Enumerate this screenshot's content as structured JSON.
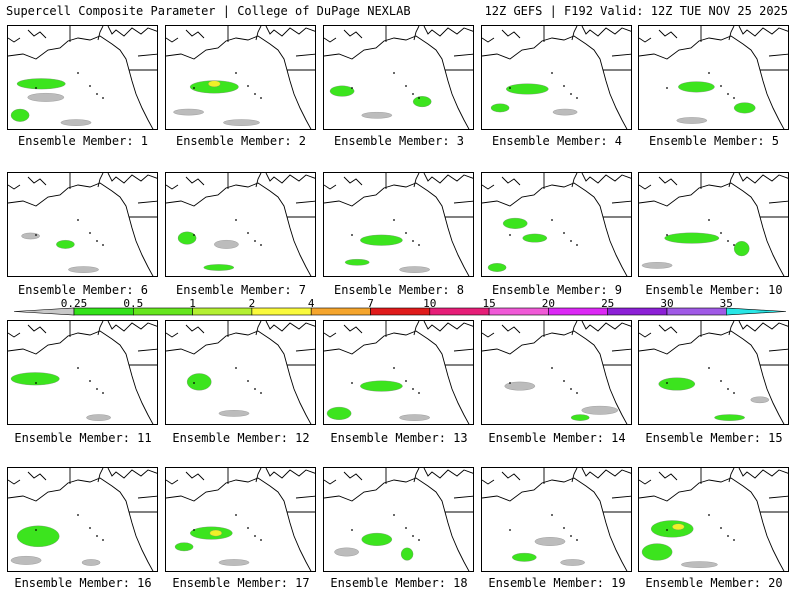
{
  "header": {
    "title": "Supercell Composite Parameter | College of DuPage NEXLAB",
    "run_info": "12Z GEFS | F192 Valid: 12Z TUE NOV 25 2025"
  },
  "map": {
    "region": "Northeast Pacific / western North America",
    "members": [
      {
        "caption": "Ensemble Member: 1",
        "blobs": [
          [
            0.22,
            0.55,
            0.16,
            0.05,
            "green"
          ],
          [
            0.08,
            0.85,
            0.06,
            0.06,
            "green"
          ],
          [
            0.25,
            0.68,
            0.12,
            0.04,
            "gray"
          ],
          [
            0.45,
            0.92,
            0.1,
            0.03,
            "gray"
          ]
        ]
      },
      {
        "caption": "Ensemble Member: 2",
        "blobs": [
          [
            0.32,
            0.58,
            0.16,
            0.06,
            "green"
          ],
          [
            0.32,
            0.55,
            0.04,
            0.03,
            "yellow"
          ],
          [
            0.15,
            0.82,
            0.1,
            0.03,
            "gray"
          ],
          [
            0.5,
            0.92,
            0.12,
            0.03,
            "gray"
          ]
        ]
      },
      {
        "caption": "Ensemble Member: 3",
        "blobs": [
          [
            0.12,
            0.62,
            0.08,
            0.05,
            "green"
          ],
          [
            0.65,
            0.72,
            0.06,
            0.05,
            "green"
          ],
          [
            0.35,
            0.85,
            0.1,
            0.03,
            "gray"
          ]
        ]
      },
      {
        "caption": "Ensemble Member: 4",
        "blobs": [
          [
            0.3,
            0.6,
            0.14,
            0.05,
            "green"
          ],
          [
            0.12,
            0.78,
            0.06,
            0.04,
            "green"
          ],
          [
            0.55,
            0.82,
            0.08,
            0.03,
            "gray"
          ]
        ]
      },
      {
        "caption": "Ensemble Member: 5",
        "blobs": [
          [
            0.38,
            0.58,
            0.12,
            0.05,
            "green"
          ],
          [
            0.7,
            0.78,
            0.07,
            0.05,
            "green"
          ],
          [
            0.35,
            0.9,
            0.1,
            0.03,
            "gray"
          ]
        ]
      },
      {
        "caption": "Ensemble Member: 6",
        "blobs": [
          [
            0.38,
            0.68,
            0.06,
            0.04,
            "green"
          ],
          [
            0.15,
            0.6,
            0.06,
            0.03,
            "gray"
          ],
          [
            0.5,
            0.92,
            0.1,
            0.03,
            "gray"
          ]
        ]
      },
      {
        "caption": "Ensemble Member: 7",
        "blobs": [
          [
            0.14,
            0.62,
            0.06,
            0.06,
            "green"
          ],
          [
            0.4,
            0.68,
            0.08,
            0.04,
            "gray"
          ],
          [
            0.35,
            0.9,
            0.1,
            0.03,
            "green"
          ]
        ]
      },
      {
        "caption": "Ensemble Member: 8",
        "blobs": [
          [
            0.38,
            0.64,
            0.14,
            0.05,
            "green"
          ],
          [
            0.22,
            0.85,
            0.08,
            0.03,
            "green"
          ],
          [
            0.6,
            0.92,
            0.1,
            0.03,
            "gray"
          ]
        ]
      },
      {
        "caption": "Ensemble Member: 9",
        "blobs": [
          [
            0.22,
            0.48,
            0.08,
            0.05,
            "green"
          ],
          [
            0.35,
            0.62,
            0.08,
            0.04,
            "green"
          ],
          [
            0.1,
            0.9,
            0.06,
            0.04,
            "green"
          ]
        ]
      },
      {
        "caption": "Ensemble Member: 10",
        "blobs": [
          [
            0.35,
            0.62,
            0.18,
            0.05,
            "green"
          ],
          [
            0.68,
            0.72,
            0.05,
            0.07,
            "green"
          ],
          [
            0.12,
            0.88,
            0.1,
            0.03,
            "gray"
          ]
        ]
      },
      {
        "caption": "Ensemble Member: 11",
        "blobs": [
          [
            0.18,
            0.55,
            0.16,
            0.06,
            "green"
          ],
          [
            0.6,
            0.92,
            0.08,
            0.03,
            "gray"
          ]
        ]
      },
      {
        "caption": "Ensemble Member: 12",
        "blobs": [
          [
            0.22,
            0.58,
            0.08,
            0.08,
            "green"
          ],
          [
            0.45,
            0.88,
            0.1,
            0.03,
            "gray"
          ]
        ]
      },
      {
        "caption": "Ensemble Member: 13",
        "blobs": [
          [
            0.38,
            0.62,
            0.14,
            0.05,
            "green"
          ],
          [
            0.1,
            0.88,
            0.08,
            0.06,
            "green"
          ],
          [
            0.6,
            0.92,
            0.1,
            0.03,
            "gray"
          ]
        ]
      },
      {
        "caption": "Ensemble Member: 14",
        "blobs": [
          [
            0.25,
            0.62,
            0.1,
            0.04,
            "gray"
          ],
          [
            0.78,
            0.85,
            0.12,
            0.04,
            "gray"
          ],
          [
            0.65,
            0.92,
            0.06,
            0.03,
            "green"
          ]
        ]
      },
      {
        "caption": "Ensemble Member: 15",
        "blobs": [
          [
            0.25,
            0.6,
            0.12,
            0.06,
            "green"
          ],
          [
            0.6,
            0.92,
            0.1,
            0.03,
            "green"
          ],
          [
            0.8,
            0.75,
            0.06,
            0.03,
            "gray"
          ]
        ]
      },
      {
        "caption": "Ensemble Member: 16",
        "blobs": [
          [
            0.2,
            0.65,
            0.14,
            0.1,
            "green"
          ],
          [
            0.12,
            0.88,
            0.1,
            0.04,
            "gray"
          ],
          [
            0.55,
            0.9,
            0.06,
            0.03,
            "gray"
          ]
        ]
      },
      {
        "caption": "Ensemble Member: 17",
        "blobs": [
          [
            0.3,
            0.62,
            0.14,
            0.06,
            "green"
          ],
          [
            0.33,
            0.62,
            0.04,
            0.03,
            "yellow"
          ],
          [
            0.12,
            0.75,
            0.06,
            0.04,
            "green"
          ],
          [
            0.45,
            0.9,
            0.1,
            0.03,
            "gray"
          ]
        ]
      },
      {
        "caption": "Ensemble Member: 18",
        "blobs": [
          [
            0.35,
            0.68,
            0.1,
            0.06,
            "green"
          ],
          [
            0.55,
            0.82,
            0.04,
            0.06,
            "green"
          ],
          [
            0.15,
            0.8,
            0.08,
            0.04,
            "gray"
          ]
        ]
      },
      {
        "caption": "Ensemble Member: 19",
        "blobs": [
          [
            0.45,
            0.7,
            0.1,
            0.04,
            "gray"
          ],
          [
            0.28,
            0.85,
            0.08,
            0.04,
            "green"
          ],
          [
            0.6,
            0.9,
            0.08,
            0.03,
            "gray"
          ]
        ]
      },
      {
        "caption": "Ensemble Member: 20",
        "blobs": [
          [
            0.22,
            0.58,
            0.14,
            0.08,
            "green"
          ],
          [
            0.26,
            0.56,
            0.04,
            0.03,
            "yellow"
          ],
          [
            0.12,
            0.8,
            0.1,
            0.08,
            "green"
          ],
          [
            0.4,
            0.92,
            0.12,
            0.03,
            "gray"
          ]
        ]
      }
    ]
  },
  "colorbar": {
    "labels": [
      "0.25",
      "0.5",
      "1",
      "2",
      "4",
      "7",
      "10",
      "15",
      "20",
      "25",
      "30",
      "35"
    ],
    "colors": [
      "#c8c8c8",
      "#33e21a",
      "#66e61e",
      "#b4f032",
      "#fafa3c",
      "#f5a52d",
      "#e01b1b",
      "#e61e78",
      "#f05ad7",
      "#dc28f5",
      "#8c20d6",
      "#a05ae6",
      "#28e6e6"
    ]
  },
  "legend_colors": {
    "gray": "#bcbcbc",
    "green": "#3ce41e",
    "yellow": "#f0f028"
  }
}
